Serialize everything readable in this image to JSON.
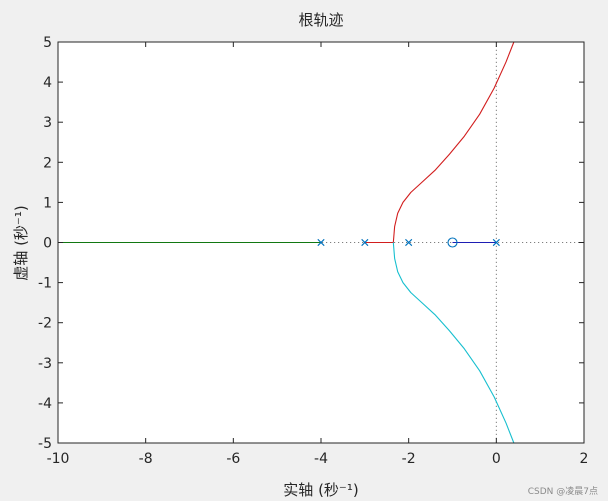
{
  "chart_data": {
    "type": "line",
    "title": "根轨迹",
    "xlabel": "实轴 (秒⁻¹)",
    "ylabel": "虚轴 (秒⁻¹)",
    "xlim": [
      -10,
      2
    ],
    "ylim": [
      -5,
      5
    ],
    "xticks": [
      "-10",
      "-8",
      "-6",
      "-4",
      "-2",
      "0",
      "2"
    ],
    "yticks": [
      "5",
      "4",
      "3",
      "2",
      "1",
      "0",
      "-1",
      "-2",
      "-3",
      "-4",
      "-5"
    ],
    "grid": false,
    "colors": {
      "figure_background": "#f0f0f0",
      "axes_background": "#ffffff",
      "axes_edge": "#262626",
      "marker": "#0072bd",
      "guide": "#7f7f7f"
    },
    "series": [
      {
        "color": "#d21e1e",
        "x": [
          -3,
          -2.35
        ],
        "y": [
          0,
          0
        ]
      },
      {
        "color": "#d21e1e",
        "x": [
          -2.35,
          -2.32,
          -2.25,
          -2.13,
          -1.95,
          -1.7,
          -1.4,
          -1.07,
          -0.73,
          -0.38,
          -0.05,
          0.22,
          0.4
        ],
        "y": [
          0,
          0.4,
          0.73,
          1.0,
          1.25,
          1.5,
          1.8,
          2.2,
          2.65,
          3.2,
          3.85,
          4.5,
          5.0
        ]
      },
      {
        "color": "#17bfcf",
        "x": [
          -2.35,
          -2.32,
          -2.25,
          -2.13,
          -1.95,
          -1.7,
          -1.4,
          -1.07,
          -0.73,
          -0.38,
          -0.05,
          0.22,
          0.4
        ],
        "y": [
          0,
          -0.4,
          -0.73,
          -1.0,
          -1.25,
          -1.5,
          -1.8,
          -2.2,
          -2.65,
          -3.2,
          -3.85,
          -4.5,
          -5.0
        ]
      },
      {
        "color": "#1e1eb4",
        "x": [
          -1,
          0
        ],
        "y": [
          0,
          0
        ]
      },
      {
        "color": "#127812",
        "x": [
          -10,
          -4
        ],
        "y": [
          0,
          0
        ]
      }
    ],
    "poles": [
      [
        -4,
        0
      ],
      [
        -3,
        0
      ],
      [
        -2,
        0
      ],
      [
        0,
        0
      ]
    ],
    "zeros": [
      [
        -1,
        0
      ]
    ]
  },
  "watermark": "CSDN @凌晨7点"
}
